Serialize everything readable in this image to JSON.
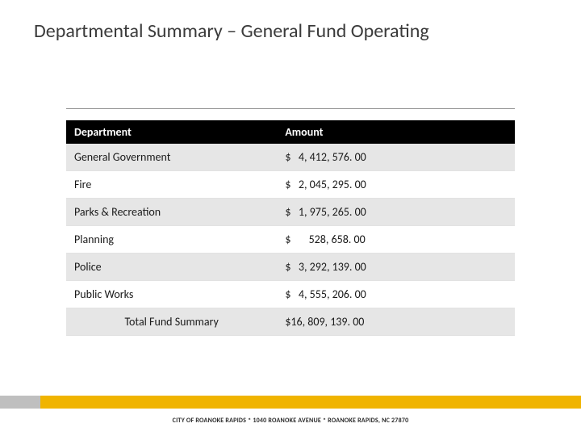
{
  "title": "Departmental Summary – General Fund Operating",
  "table": {
    "columns": [
      "Department",
      "Amount"
    ],
    "rows": [
      {
        "dept": "General Government",
        "amount": "$   4, 412, 576. 00",
        "shade": true
      },
      {
        "dept": "Fire",
        "amount": "$   2, 045, 295. 00",
        "shade": false
      },
      {
        "dept": "Parks & Recreation",
        "amount": "$   1, 975, 265. 00",
        "shade": true
      },
      {
        "dept": "Planning",
        "amount": "$       528, 658. 00",
        "shade": false
      },
      {
        "dept": "Police",
        "amount": "$   3, 292, 139. 00",
        "shade": true
      },
      {
        "dept": "Public Works",
        "amount": "$   4, 555, 206. 00",
        "shade": false
      }
    ],
    "total": {
      "dept": "Total Fund Summary",
      "amount": "$16, 809, 139. 00"
    }
  },
  "footer": "CITY OF ROANOKE RAPIDS * 1040 ROANOKE AVENUE * ROANOKE RAPIDS, NC 27870",
  "colors": {
    "header_bg": "#000000",
    "header_fg": "#ffffff",
    "row_shade": "#e6e6e6",
    "band_gold": "#f0b400",
    "band_grey": "#bfbfbf"
  }
}
